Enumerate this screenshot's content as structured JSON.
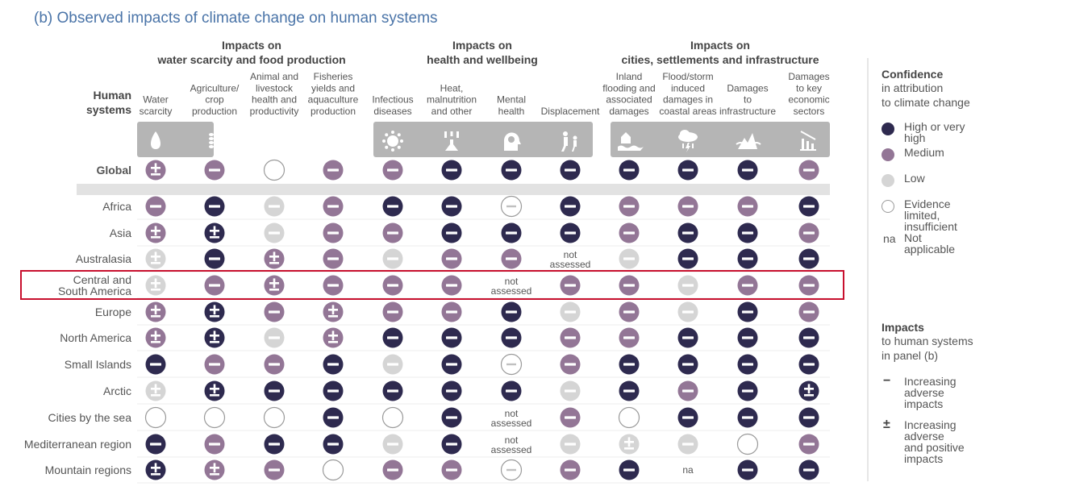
{
  "title": "(b) Observed impacts of climate change on human systems",
  "row_header": [
    "Human",
    "systems"
  ],
  "groups": [
    {
      "lines": [
        "Impacts on",
        "water scarcity and food production"
      ]
    },
    {
      "lines": [
        "Impacts on",
        "health and wellbeing"
      ]
    },
    {
      "lines": [
        "Impacts on",
        "cities, settlements and infrastructure"
      ]
    }
  ],
  "columns": [
    {
      "lines": [
        "Water",
        "scarcity"
      ],
      "icon": "water-drop-icon"
    },
    {
      "lines": [
        "Agriculture/",
        "crop",
        "production"
      ],
      "icon": "wheat-icon"
    },
    {
      "lines": [
        "Animal and",
        "livestock",
        "health and",
        "productivity"
      ],
      "icon": "chicken-icon"
    },
    {
      "lines": [
        "Fisheries",
        "yields and",
        "aquaculture",
        "production"
      ],
      "icon": "fish-icon"
    },
    {
      "lines": [
        "Infectious",
        "diseases"
      ],
      "icon": "virus-icon"
    },
    {
      "lines": [
        "Heat,",
        "malnutrition",
        "and other"
      ],
      "icon": "heat-icon"
    },
    {
      "lines": [
        "Mental",
        "health"
      ],
      "icon": "head-icon"
    },
    {
      "lines": [
        "Displacement"
      ],
      "icon": "displacement-icon"
    },
    {
      "lines": [
        "Inland",
        "flooding and",
        "associated",
        "damages"
      ],
      "icon": "flood-icon"
    },
    {
      "lines": [
        "Flood/storm",
        "induced",
        "damages in",
        "coastal areas"
      ],
      "icon": "storm-icon"
    },
    {
      "lines": [
        "Damages",
        "to",
        "infrastructure"
      ],
      "icon": "infrastructure-icon"
    },
    {
      "lines": [
        "Damages",
        "to key",
        "economic",
        "sectors"
      ],
      "icon": "economic-decline-icon"
    }
  ],
  "legend": {
    "confidence_title": "Confidence",
    "confidence_sub": [
      "in attribution",
      "to climate change"
    ],
    "confidence_items": [
      {
        "level": "H",
        "label": [
          "High or very high"
        ]
      },
      {
        "level": "M",
        "label": [
          "Medium"
        ]
      },
      {
        "level": "L",
        "label": [
          "Low"
        ]
      },
      {
        "level": "E",
        "label": [
          "Evidence limited,",
          "insufficient"
        ]
      },
      {
        "level": "na",
        "symbol": "na",
        "label": [
          "Not applicable"
        ]
      }
    ],
    "impacts_title": "Impacts",
    "impacts_sub": [
      "to human systems",
      "in panel (b)"
    ],
    "impact_items": [
      {
        "symbol": "−",
        "label": [
          "Increasing",
          "adverse",
          "impacts"
        ]
      },
      {
        "symbol": "±",
        "label": [
          "Increasing",
          "adverse",
          "and positive",
          "impacts"
        ]
      }
    ]
  },
  "colors": {
    "H": "#2e2a4f",
    "M": "#937696",
    "L": "#d5d5d5",
    "title": "#4a74a8",
    "highlight": "#c8102e",
    "icon_band": "#b5b5b5"
  },
  "highlighted_row": "Central and South America",
  "chart_data": {
    "type": "table",
    "encoding": "H = high or very high confidence, M = medium, L = low, E = evidence limited/insufficient; '-' = increasing adverse impacts, '+-' = increasing adverse and positive impacts",
    "rows": [
      {
        "name": [
          "Global"
        ],
        "cells": [
          "M+-",
          "M-",
          "E",
          "M-",
          "M-",
          "H-",
          "H-",
          "H-",
          "H-",
          "H-",
          "H-",
          "M-"
        ]
      },
      {
        "name": [
          "Africa"
        ],
        "cells": [
          "M-",
          "H-",
          "L-",
          "M-",
          "H-",
          "H-",
          "E-",
          "H-",
          "M-",
          "M-",
          "M-",
          "H-"
        ]
      },
      {
        "name": [
          "Asia"
        ],
        "cells": [
          "M+-",
          "H+-",
          "L-",
          "M-",
          "M-",
          "H-",
          "H-",
          "H-",
          "M-",
          "H-",
          "H-",
          "M-"
        ]
      },
      {
        "name": [
          "Australasia"
        ],
        "cells": [
          "L+-",
          "H-",
          "M+-",
          "M-",
          "L-",
          "M-",
          "M-",
          "not assessed",
          "L-",
          "H-",
          "H-",
          "H-"
        ]
      },
      {
        "name": [
          "Central and",
          "South America"
        ],
        "cells": [
          "L+-",
          "M-",
          "M+-",
          "M-",
          "M-",
          "M-",
          "not assessed",
          "M-",
          "M-",
          "L-",
          "M-",
          "M-"
        ]
      },
      {
        "name": [
          "Europe"
        ],
        "cells": [
          "M+-",
          "H+-",
          "M-",
          "M+-",
          "M-",
          "M-",
          "H-",
          "L-",
          "M-",
          "L-",
          "H-",
          "M-"
        ]
      },
      {
        "name": [
          "North America"
        ],
        "cells": [
          "M+-",
          "H+-",
          "L-",
          "M+-",
          "H-",
          "H-",
          "H-",
          "M-",
          "M-",
          "H-",
          "H-",
          "H-"
        ]
      },
      {
        "name": [
          "Small Islands"
        ],
        "cells": [
          "H-",
          "M-",
          "M-",
          "H-",
          "L-",
          "H-",
          "E-",
          "M-",
          "H-",
          "H-",
          "H-",
          "H-"
        ]
      },
      {
        "name": [
          "Arctic"
        ],
        "cells": [
          "L+-",
          "H+-",
          "H-",
          "H-",
          "H-",
          "H-",
          "H-",
          "L-",
          "H-",
          "M-",
          "H-",
          "H+-"
        ]
      },
      {
        "name": [
          "Cities by the sea"
        ],
        "cells": [
          "E",
          "E",
          "E",
          "H-",
          "E",
          "H-",
          "not assessed",
          "M-",
          "E",
          "H-",
          "H-",
          "H-"
        ]
      },
      {
        "name": [
          "Mediterranean region"
        ],
        "cells": [
          "H-",
          "M-",
          "H-",
          "H-",
          "L-",
          "H-",
          "not assessed",
          "L-",
          "L+-",
          "L-",
          "E",
          "M-"
        ]
      },
      {
        "name": [
          "Mountain regions"
        ],
        "cells": [
          "H+-",
          "M+-",
          "M-",
          "E",
          "M-",
          "M-",
          "E-",
          "M-",
          "H-",
          "na",
          "H-",
          "H-"
        ]
      }
    ]
  }
}
